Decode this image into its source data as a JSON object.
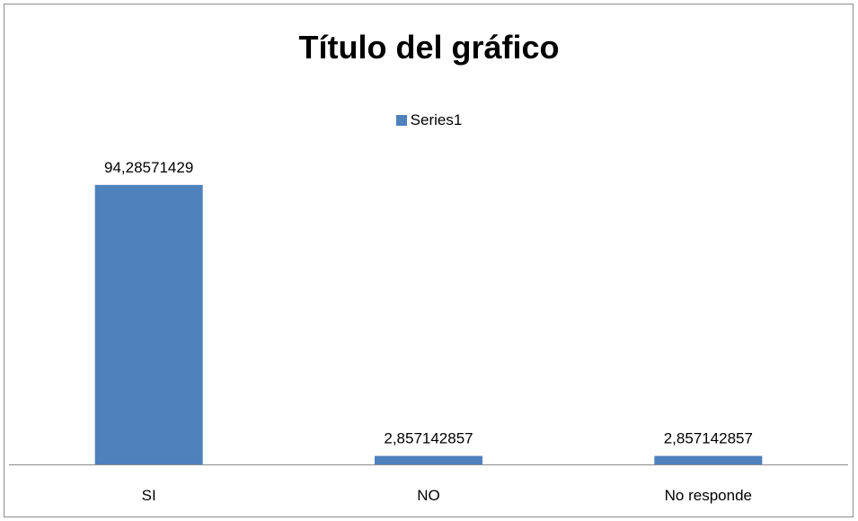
{
  "chart_data": {
    "type": "bar",
    "title": "Título del gráfico",
    "categories": [
      "SI",
      "NO",
      "No responde"
    ],
    "series": [
      {
        "name": "Series1",
        "values": [
          94.28571429,
          2.857142857,
          2.857142857
        ],
        "data_labels": [
          "94,28571429",
          "2,857142857",
          "2,857142857"
        ],
        "color": "#4f81bd"
      }
    ],
    "ylim": [
      0,
      100
    ],
    "grid": false,
    "legend_position": "top"
  }
}
